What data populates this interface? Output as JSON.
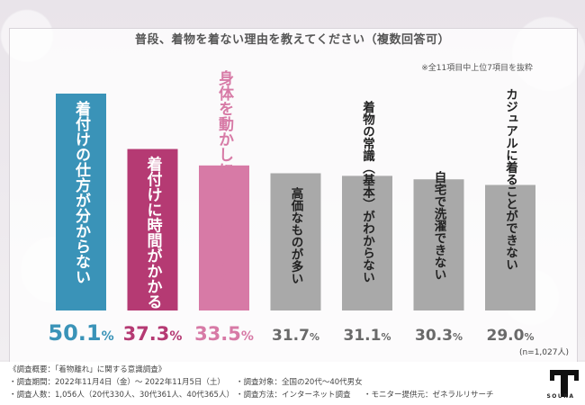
{
  "title": "普段、着物を着ない理由を教えてください（複数回答可）",
  "note": "※全11項目中上位7項目を抜粋",
  "sample": "(n=1,027人)",
  "colors": {
    "bar1": "#3a93b8",
    "bar2": "#b53a73",
    "bar3": "#d77aa6",
    "bar_gray": "#a9a9a9",
    "text_on_bar": "#222222",
    "pct_gray": "#6a6a6a"
  },
  "chart_data": {
    "type": "bar",
    "title": "普段、着物を着ない理由を教えてください（複数回答可）",
    "unit": "%",
    "ylim": [
      0,
      55
    ],
    "categories": [
      "着付けの仕方が分からない",
      "着付けに時間がかかる",
      "身体を動かしにくい・歩きにくい",
      "高価なものが多い",
      "着物の常識（基本）がわからない",
      "自宅で洗濯できない",
      "カジュアルに着ることができない"
    ],
    "values": [
      50.1,
      37.3,
      33.5,
      31.7,
      31.1,
      30.3,
      29.0
    ],
    "value_labels": [
      {
        "num": "50.1",
        "pct": "%"
      },
      {
        "num": "37.3",
        "pct": "%"
      },
      {
        "num": "33.5",
        "pct": "%"
      },
      {
        "num": "31.7",
        "pct": "%"
      },
      {
        "num": "31.1",
        "pct": "%"
      },
      {
        "num": "30.3",
        "pct": "%"
      },
      {
        "num": "29.0",
        "pct": "%"
      }
    ]
  },
  "footer": {
    "heading": "《調査概要：「着物離れ」に関する意識調査》",
    "period": "・調査期間：2022年11月4日（金）〜 2022年11月5日（土）",
    "target": "・調査対象：全国の20代〜40代男女",
    "count": "・調査人数：1,056人（20代330人、30代361人、40代365人）",
    "method": "・調査方法：インターネット調査",
    "provider": "・モニター提供元：ゼネラルリサーチ"
  },
  "logo": {
    "text": "SOURA"
  }
}
